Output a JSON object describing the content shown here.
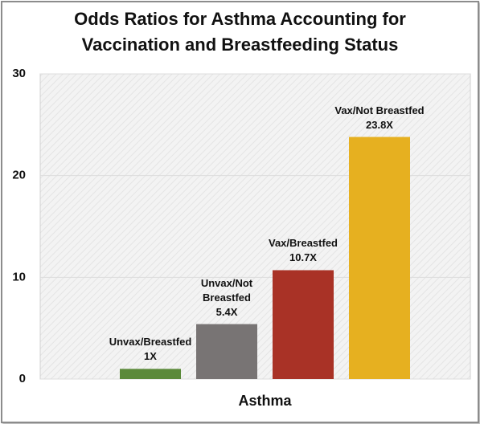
{
  "chart_data": {
    "type": "bar",
    "title": "Odds Ratios for Asthma Accounting for Vaccination and Breastfeeding Status",
    "categories": [
      "Asthma"
    ],
    "series": [
      {
        "name": "Unvax/Breastfed",
        "color": "#5b8a3a",
        "values": [
          1
        ],
        "value_labels": [
          "1X"
        ]
      },
      {
        "name": "Unvax/Not Breastfed",
        "color": "#787474",
        "values": [
          5.4
        ],
        "value_labels": [
          "5.4X"
        ]
      },
      {
        "name": "Vax/Breastfed",
        "color": "#a93226",
        "values": [
          10.7
        ],
        "value_labels": [
          "10.7X"
        ]
      },
      {
        "name": "Vax/Not Breastfed",
        "color": "#e6b020",
        "values": [
          23.8
        ],
        "value_labels": [
          "23.8X"
        ]
      }
    ],
    "ylim": [
      0,
      30
    ],
    "yticks": [
      0,
      10,
      20,
      30
    ],
    "grid": true
  }
}
